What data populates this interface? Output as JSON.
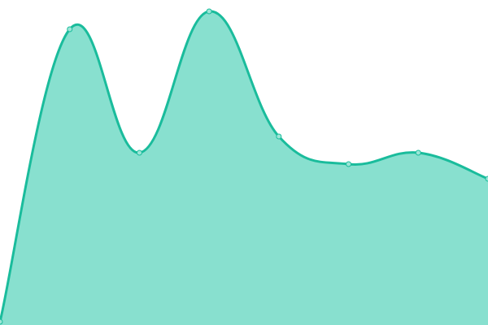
{
  "chart_data": {
    "type": "area",
    "title": "",
    "xlabel": "",
    "ylabel": "",
    "x": [
      0,
      1,
      2,
      3,
      4,
      5,
      6,
      7
    ],
    "values": [
      1,
      91,
      53,
      96.5,
      58,
      49.5,
      53,
      45
    ],
    "ylim": [
      0,
      100
    ],
    "grid": false,
    "legend": "none",
    "colors": {
      "line": "#1abc9c",
      "fill": "#88e0cf",
      "marker_fill": "#9de6d7"
    }
  }
}
